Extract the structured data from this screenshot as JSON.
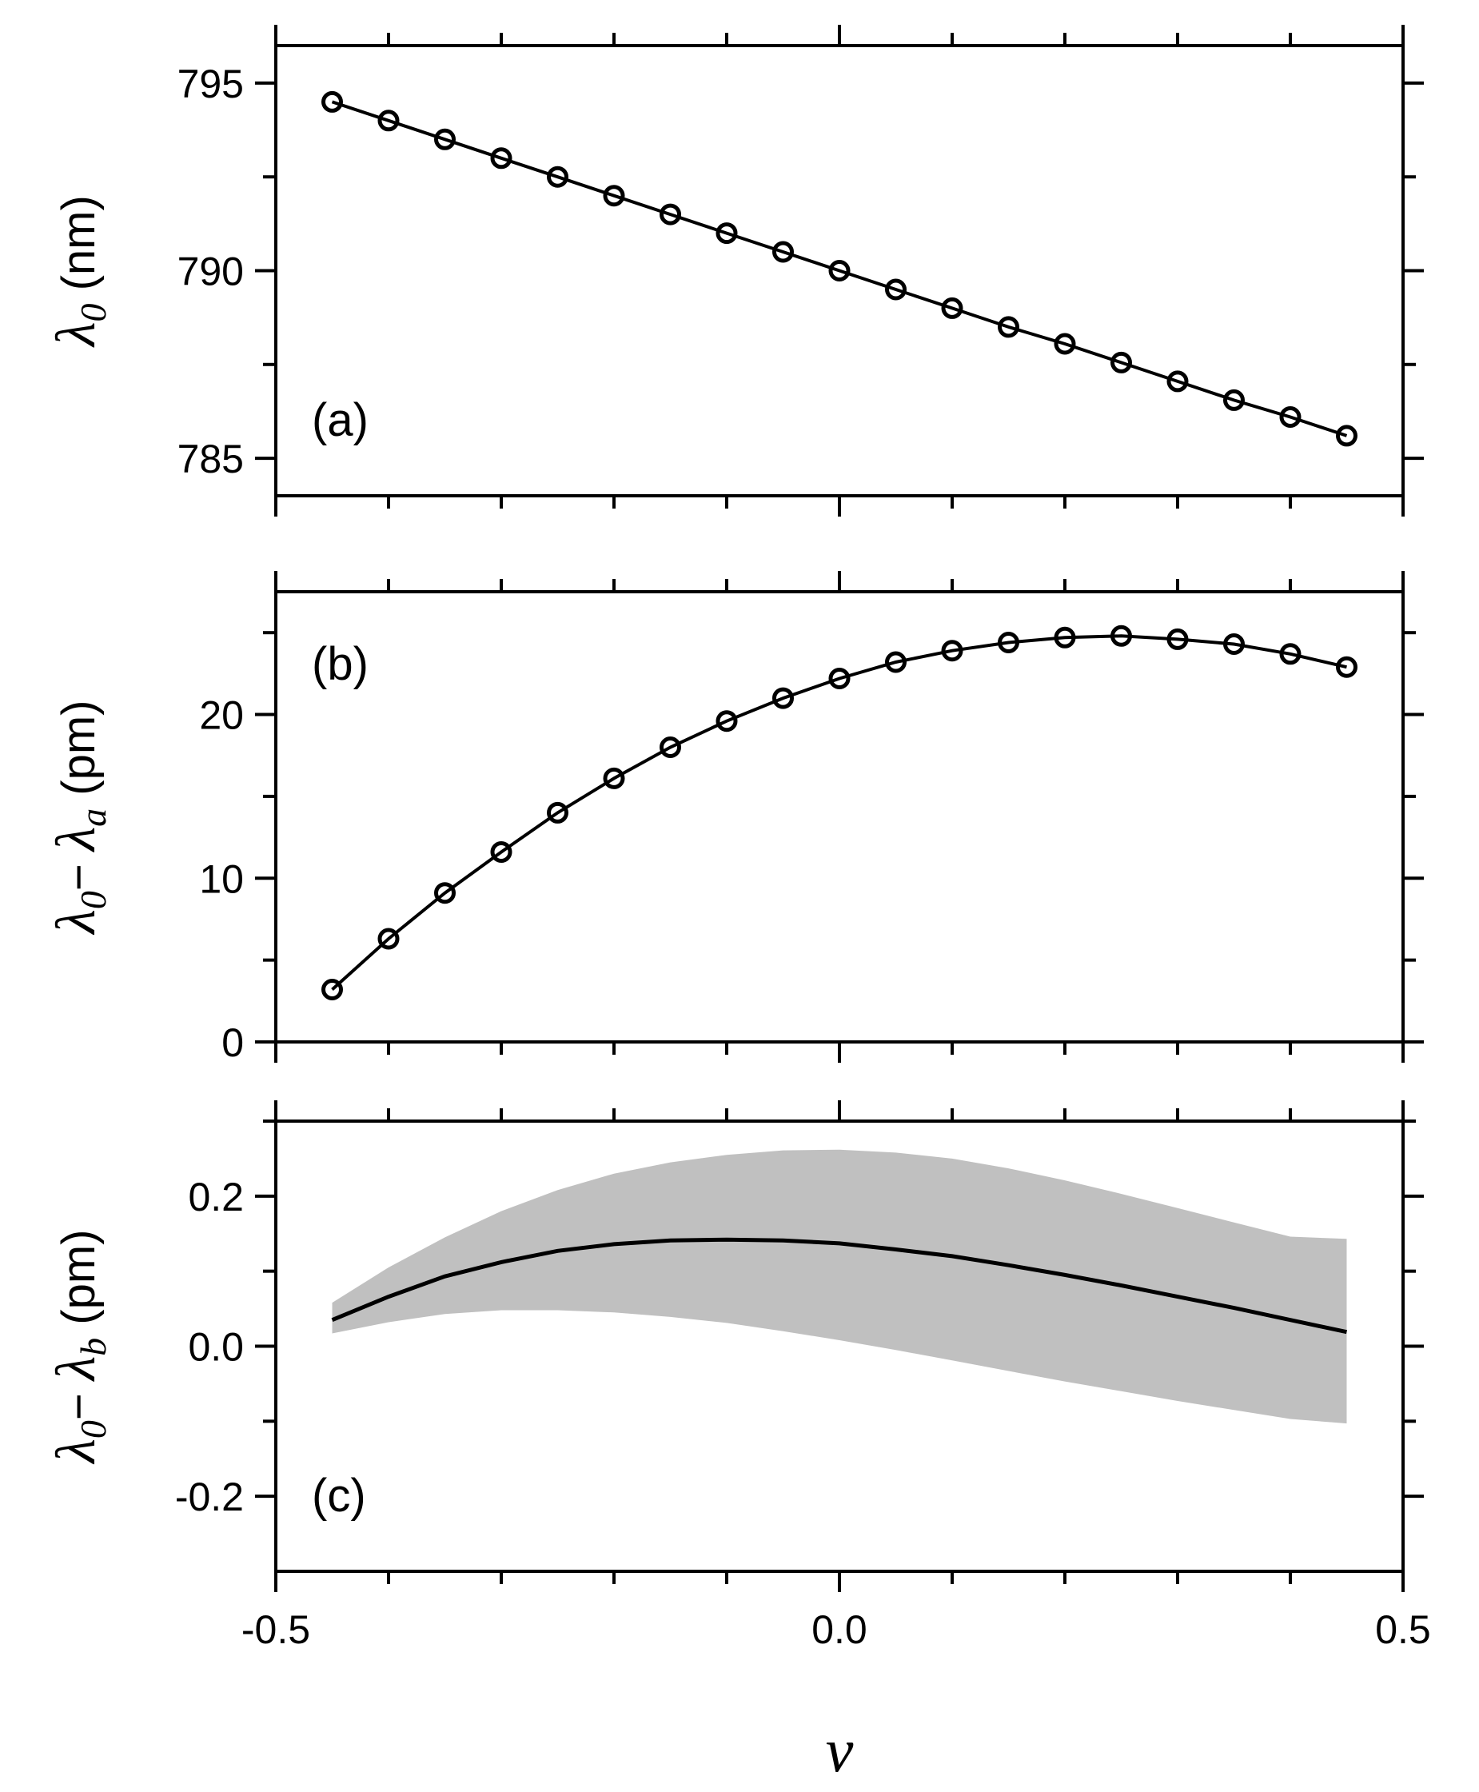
{
  "chart_data": [
    {
      "type": "line",
      "panel": "(a)",
      "ylabel": {
        "symbol": "λ",
        "sub": "0",
        "unit": " (nm)"
      },
      "xlim": [
        -0.5,
        0.5
      ],
      "ylim": [
        784,
        796
      ],
      "yticks": [
        "785",
        "790",
        "795"
      ],
      "x": [
        -0.45,
        -0.4,
        -0.35,
        -0.3,
        -0.25,
        -0.2,
        -0.15,
        -0.1,
        -0.05,
        0.0,
        0.05,
        0.1,
        0.15,
        0.2,
        0.25,
        0.3,
        0.35,
        0.4,
        0.45
      ],
      "series": [
        {
          "name": "markers",
          "style": "open-circle",
          "values": [
            794.5,
            794.0,
            793.5,
            793.0,
            792.5,
            792.0,
            791.5,
            791.0,
            790.5,
            790.0,
            789.5,
            789.0,
            788.5,
            788.05,
            787.55,
            787.05,
            786.55,
            786.1,
            785.6
          ]
        }
      ]
    },
    {
      "type": "line",
      "panel": "(b)",
      "ylabel": {
        "symbol": "λ",
        "sub": "0",
        "minus": "− ",
        "symbol2": "λ",
        "sub2": "a",
        "unit": " (pm)"
      },
      "xlim": [
        -0.5,
        0.5
      ],
      "ylim": [
        0,
        27.5
      ],
      "yticks": [
        "0",
        "10",
        "20"
      ],
      "x": [
        -0.45,
        -0.4,
        -0.35,
        -0.3,
        -0.25,
        -0.2,
        -0.15,
        -0.1,
        -0.05,
        0.0,
        0.05,
        0.1,
        0.15,
        0.2,
        0.25,
        0.3,
        0.35,
        0.4,
        0.45
      ],
      "series": [
        {
          "name": "markers",
          "style": "open-circle",
          "values": [
            3.2,
            6.3,
            9.1,
            11.6,
            14.0,
            16.1,
            18.0,
            19.6,
            21.0,
            22.2,
            23.2,
            23.9,
            24.4,
            24.7,
            24.8,
            24.6,
            24.3,
            23.7,
            22.9
          ]
        }
      ]
    },
    {
      "type": "area",
      "panel": "(c)",
      "ylabel": {
        "symbol": "λ",
        "sub": "0",
        "minus": "− ",
        "symbol2": "λ",
        "sub2": "b",
        "unit": " (pm)"
      },
      "xlim": [
        -0.5,
        0.5
      ],
      "ylim": [
        -0.3,
        0.3
      ],
      "yticks": [
        "-0.2",
        "0.0",
        "0.2"
      ],
      "xticks": [
        "-0.5",
        "0.0",
        "0.5"
      ],
      "xlabel": "v",
      "x": [
        -0.45,
        -0.4,
        -0.35,
        -0.3,
        -0.25,
        -0.2,
        -0.15,
        -0.1,
        -0.05,
        0.0,
        0.05,
        0.1,
        0.15,
        0.2,
        0.25,
        0.3,
        0.35,
        0.4,
        0.45
      ],
      "series": [
        {
          "name": "line",
          "values": [
            0.035,
            0.066,
            0.093,
            0.112,
            0.127,
            0.136,
            0.141,
            0.142,
            0.141,
            0.137,
            0.129,
            0.12,
            0.108,
            0.095,
            0.081,
            0.066,
            0.051,
            0.035,
            0.019
          ]
        },
        {
          "name": "band-upper",
          "values": [
            0.058,
            0.105,
            0.145,
            0.18,
            0.208,
            0.23,
            0.245,
            0.255,
            0.261,
            0.262,
            0.258,
            0.25,
            0.237,
            0.221,
            0.203,
            0.184,
            0.165,
            0.146,
            0.143
          ]
        },
        {
          "name": "band-lower",
          "values": [
            0.017,
            0.032,
            0.043,
            0.048,
            0.048,
            0.045,
            0.039,
            0.031,
            0.02,
            0.008,
            -0.005,
            -0.019,
            -0.033,
            -0.047,
            -0.06,
            -0.073,
            -0.085,
            -0.097,
            -0.103
          ]
        }
      ]
    }
  ],
  "colors": {
    "axis": "#000000",
    "band": "#c0c0c0",
    "line": "#000000"
  }
}
